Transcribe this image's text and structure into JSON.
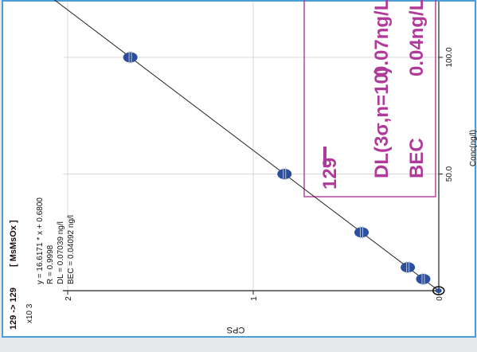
{
  "chart_data": {
    "type": "scatter",
    "transition": "129 -> 129",
    "species": "[ MsMsOx ]",
    "xlabel": "Conc(ng/l)",
    "ylabel": "CPS",
    "y_multiplier": "x10 3",
    "x_ticks": [
      {
        "value": 50,
        "label": "50.0"
      },
      {
        "value": 100,
        "label": "100.0"
      }
    ],
    "y_ticks": [
      {
        "value": 0,
        "label": "0"
      },
      {
        "value": 1,
        "label": "1"
      },
      {
        "value": 2,
        "label": "2"
      }
    ],
    "xlim": [
      0,
      128
    ],
    "ylim": [
      0,
      2.05
    ],
    "grid": true,
    "fit": {
      "slope": 16.6171,
      "intercept": 0.68,
      "R": 0.9998
    },
    "stats": [
      "y = 16.6171 * x + 0.6800",
      "R = 0.9998",
      "DL = 0.07039 ng/l",
      "BEC = 0.04092 ng/l"
    ],
    "points": [
      {
        "x": 0,
        "y": 0.001
      },
      {
        "x": 5,
        "y": 0.0838
      },
      {
        "x": 10,
        "y": 0.1668
      },
      {
        "x": 25,
        "y": 0.4161
      },
      {
        "x": 50,
        "y": 0.8316
      },
      {
        "x": 100,
        "y": 1.6624
      }
    ],
    "annotation": {
      "mass": "129",
      "lines": [
        {
          "label": "DL(3σ,n=10)",
          "value": "0.07ng/L"
        },
        {
          "label": "BEC",
          "value": "0.04ng/L"
        }
      ]
    },
    "colors": {
      "point": "#2b4f9e",
      "line": "#222222",
      "annotation": "#b03a9a",
      "grid": "#d8d8d8",
      "border": "#4a9fd8"
    }
  }
}
